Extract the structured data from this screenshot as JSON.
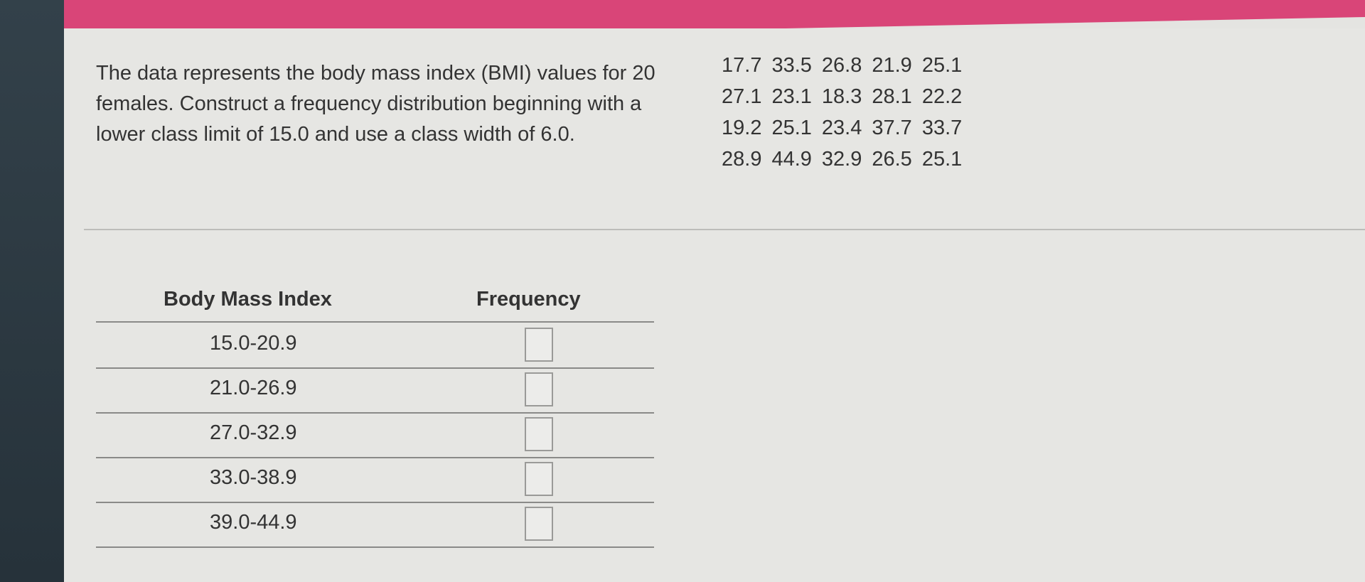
{
  "question": {
    "text": "The data represents the body mass index (BMI) values for 20 females. Construct a frequency distribution beginning with a lower class limit of 15.0 and use a class width of 6.0.",
    "data": [
      [
        17.7,
        33.5,
        26.8,
        21.9,
        25.1
      ],
      [
        27.1,
        23.1,
        18.3,
        28.1,
        22.2
      ],
      [
        19.2,
        25.1,
        23.4,
        37.7,
        33.7
      ],
      [
        28.9,
        44.9,
        32.9,
        26.5,
        25.1
      ]
    ]
  },
  "table": {
    "headers": [
      "Body Mass Index",
      "Frequency"
    ],
    "rows": [
      "15.0-20.9",
      "21.0-26.9",
      "27.0-32.9",
      "33.0-38.9",
      "39.0-44.9"
    ]
  }
}
